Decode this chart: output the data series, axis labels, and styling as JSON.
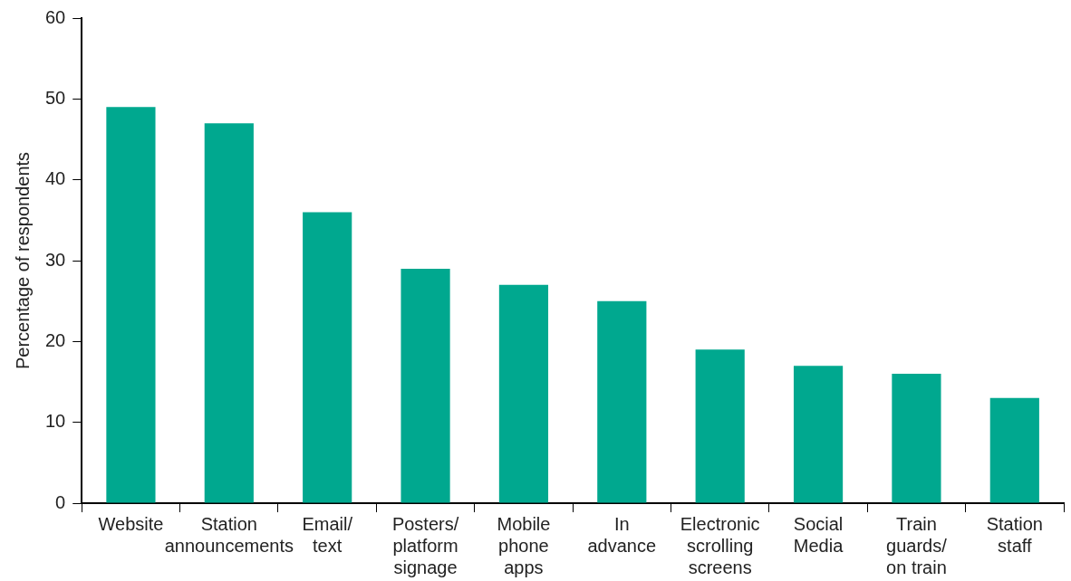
{
  "chart_data": {
    "type": "bar",
    "ylabel": "Percentage of respondents",
    "categories": [
      "Website",
      "Station announcements",
      "Email/ text",
      "Posters/ platform signage",
      "Mobile phone apps",
      "In advance",
      "Electronic scrolling screens",
      "Social Media",
      "Train guards/ on train",
      "Station staff"
    ],
    "values": [
      49,
      47,
      36,
      29,
      27,
      25,
      19,
      17,
      16,
      13
    ],
    "color": "#00a88f",
    "ylim": [
      0,
      60
    ],
    "yticks": [
      0,
      10,
      20,
      30,
      40,
      50,
      60
    ],
    "grid": false,
    "legend": false
  }
}
